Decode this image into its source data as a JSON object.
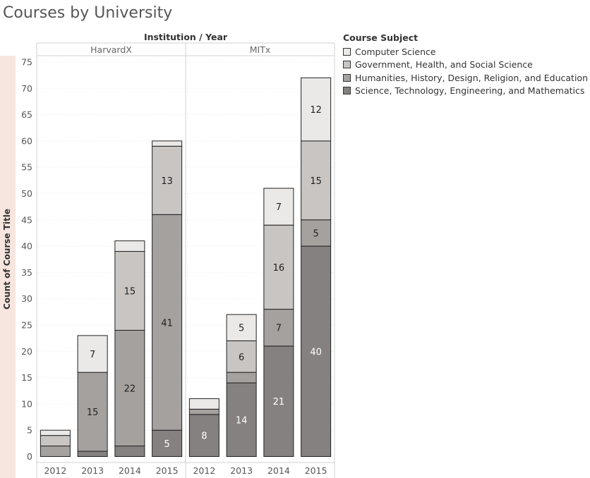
{
  "title": "Courses by University",
  "chart_data": {
    "type": "bar",
    "stacked": true,
    "column_header": "Institution / Year",
    "ylabel": "Count of Course Title",
    "ylim": [
      0,
      75
    ],
    "yticks": [
      0,
      5,
      10,
      15,
      20,
      25,
      30,
      35,
      40,
      45,
      50,
      55,
      60,
      65,
      70,
      75
    ],
    "grid": true,
    "legend_title": "Course Subject",
    "legend_position": "right",
    "panels": [
      {
        "name": "HarvardX",
        "categories": [
          "2012",
          "2013",
          "2014",
          "2015"
        ],
        "series": [
          {
            "name": "Science, Technology, Engineering, and Mathematics",
            "color": "#858180",
            "values": [
              0,
              1,
              2,
              5
            ]
          },
          {
            "name": "Humanities, History, Design, Religion, and Education",
            "color": "#a5a19f",
            "values": [
              2,
              15,
              22,
              41
            ]
          },
          {
            "name": "Government, Health, and Social Science",
            "color": "#c8c5c3",
            "values": [
              2,
              0,
              15,
              13
            ]
          },
          {
            "name": "Computer Science",
            "color": "#ebe9e8",
            "values": [
              1,
              7,
              2,
              1
            ]
          }
        ],
        "labels": [
          [
            "",
            "",
            "",
            "5"
          ],
          [
            "",
            "15",
            "22",
            "41"
          ],
          [
            "",
            "",
            "15",
            "13"
          ],
          [
            "",
            "7",
            "",
            ""
          ]
        ]
      },
      {
        "name": "MITx",
        "categories": [
          "2012",
          "2013",
          "2014",
          "2015"
        ],
        "series": [
          {
            "name": "Science, Technology, Engineering, and Mathematics",
            "color": "#858180",
            "values": [
              8,
              14,
              21,
              40
            ]
          },
          {
            "name": "Humanities, History, Design, Religion, and Education",
            "color": "#a5a19f",
            "values": [
              1,
              2,
              7,
              5
            ]
          },
          {
            "name": "Government, Health, and Social Science",
            "color": "#c8c5c3",
            "values": [
              0,
              6,
              16,
              15
            ]
          },
          {
            "name": "Computer Science",
            "color": "#ebe9e8",
            "values": [
              2,
              5,
              7,
              12
            ]
          }
        ],
        "labels": [
          [
            "8",
            "14",
            "21",
            "40"
          ],
          [
            "",
            "",
            "7",
            "5"
          ],
          [
            "",
            "6",
            "16",
            "15"
          ],
          [
            "",
            "5",
            "7",
            "12"
          ]
        ]
      }
    ],
    "legend": [
      {
        "name": "Computer Science",
        "color": "#ebe9e8"
      },
      {
        "name": "Government, Health, and Social Science",
        "color": "#c8c5c3"
      },
      {
        "name": "Humanities, History, Design, Religion, and Education",
        "color": "#a5a19f"
      },
      {
        "name": "Science, Technology, Engineering, and Mathematics",
        "color": "#858180"
      }
    ],
    "axis_band_color": "#f7e6df"
  }
}
